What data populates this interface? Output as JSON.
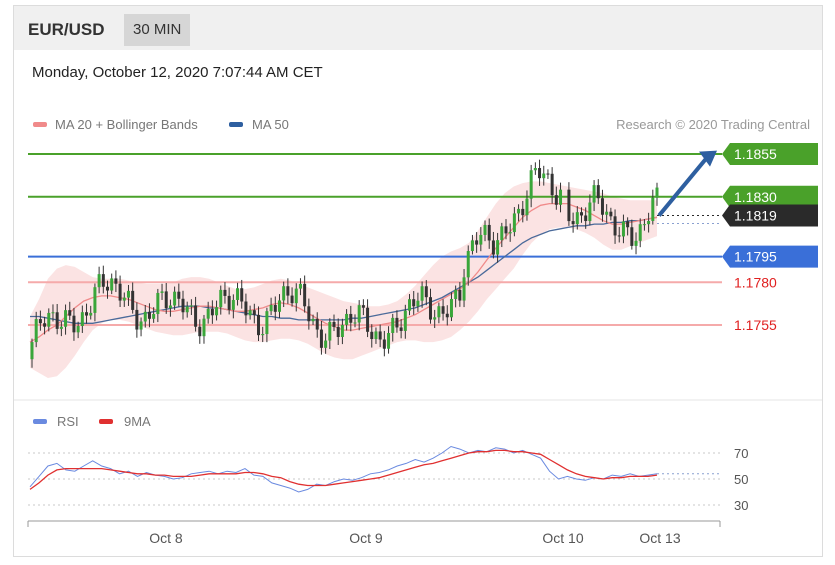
{
  "header": {
    "symbol": "EUR/USD",
    "timeframe": "30 MIN"
  },
  "datetime": "Monday, October 12, 2020 7:07:44 AM CET",
  "legend": {
    "ma20": "MA 20 + Bollinger Bands",
    "ma50": "MA 50",
    "credit": "Research © 2020 Trading Central"
  },
  "colors": {
    "resistance": "#4aa12a",
    "pivot": "#3a6fd8",
    "support": "#e02020",
    "support_line": "#f5aaaa",
    "current": "#2a2a2a",
    "candle_up": "#3aa63a",
    "candle_down": "#333333",
    "ma20": "#f08a8a",
    "ma50": "#4a6a9a",
    "band": "#fbe3e3",
    "arrow": "#2e5fa0",
    "rsi": "#6a8ae0",
    "rsi_ma": "#e03030"
  },
  "levels": [
    {
      "value": "1.1855",
      "kind": "resistance"
    },
    {
      "value": "1.1830",
      "kind": "resistance"
    },
    {
      "value": "1.1819",
      "kind": "current"
    },
    {
      "value": "1.1795",
      "kind": "pivot"
    },
    {
      "value": "1.1780",
      "kind": "support"
    },
    {
      "value": "1.1755",
      "kind": "support"
    }
  ],
  "rsi_legend": {
    "rsi": "RSI",
    "ma": "9MA"
  },
  "rsi_ticks": [
    "70",
    "50",
    "30"
  ],
  "x_labels": [
    "Oct 8",
    "Oct 9",
    "Oct 10",
    "Oct 13"
  ],
  "chart_data": {
    "type": "line",
    "title": "EUR/USD",
    "timeframe": "30 MIN",
    "y_range": [
      1.1695,
      1.1865
    ],
    "levels": [
      1.1855,
      1.183,
      1.1819,
      1.1795,
      1.178,
      1.1755
    ],
    "last_price": 1.1819,
    "ma20": [
      1.1745,
      1.1748,
      1.1752,
      1.1755,
      1.176,
      1.1765,
      1.1769,
      1.1771,
      1.1772,
      1.1772,
      1.1771,
      1.177,
      1.1768,
      1.1766,
      1.1764,
      1.1763,
      1.1763,
      1.1764,
      1.1765,
      1.1766,
      1.1766,
      1.1765,
      1.1764,
      1.1763,
      1.1763,
      1.1764,
      1.1765,
      1.1767,
      1.1768,
      1.1767,
      1.1765,
      1.1762,
      1.1759,
      1.1756,
      1.1754,
      1.1752,
      1.1752,
      1.1753,
      1.1754,
      1.1755,
      1.1756,
      1.1757,
      1.1759,
      1.1761,
      1.1764,
      1.1767,
      1.177,
      1.1773,
      1.1776,
      1.178,
      1.1786,
      1.1793,
      1.18,
      1.1806,
      1.1812,
      1.1818,
      1.1822,
      1.1825,
      1.1826,
      1.1826,
      1.1826,
      1.1824,
      1.1822,
      1.1819,
      1.1816,
      1.1814,
      1.1814,
      1.1815,
      1.1816,
      1.1817,
      1.1818
    ],
    "ma50": [
      1.176,
      1.176,
      1.1759,
      1.1758,
      1.1757,
      1.1756,
      1.1756,
      1.1756,
      1.1757,
      1.1758,
      1.1759,
      1.176,
      1.1761,
      1.1762,
      1.1763,
      1.1764,
      1.1765,
      1.1766,
      1.1766,
      1.1766,
      1.1765,
      1.1765,
      1.1764,
      1.1763,
      1.1762,
      1.1761,
      1.176,
      1.176,
      1.1759,
      1.1759,
      1.1758,
      1.1758,
      1.1758,
      1.1758,
      1.1758,
      1.1758,
      1.1759,
      1.1759,
      1.176,
      1.1761,
      1.1762,
      1.1763,
      1.1764,
      1.1765,
      1.1767,
      1.1769,
      1.1771,
      1.1774,
      1.1777,
      1.178,
      1.1783,
      1.1787,
      1.1791,
      1.1795,
      1.1799,
      1.1803,
      1.1806,
      1.1808,
      1.181,
      1.1811,
      1.1812,
      1.1813,
      1.1813,
      1.1814,
      1.1814,
      1.1815,
      1.1815,
      1.1816,
      1.1816,
      1.1817,
      1.1818
    ],
    "band_upper": [
      1.176,
      1.177,
      1.1782,
      1.1788,
      1.179,
      1.1789,
      1.1786,
      1.1783,
      1.1782,
      1.1782,
      1.1782,
      1.1781,
      1.178,
      1.1779,
      1.1779,
      1.1779,
      1.178,
      1.1782,
      1.1783,
      1.1783,
      1.1782,
      1.178,
      1.1778,
      1.1776,
      1.1776,
      1.1777,
      1.1779,
      1.1781,
      1.1782,
      1.1781,
      1.1779,
      1.1777,
      1.1775,
      1.1773,
      1.1771,
      1.1769,
      1.1768,
      1.1767,
      1.1766,
      1.1766,
      1.1767,
      1.1769,
      1.1773,
      1.1778,
      1.1784,
      1.179,
      1.1795,
      1.1798,
      1.18,
      1.1803,
      1.181,
      1.1818,
      1.1826,
      1.1832,
      1.1836,
      1.1838,
      1.1839,
      1.1839,
      1.1838,
      1.1837,
      1.1836,
      1.1835,
      1.1834,
      1.1833,
      1.1832,
      1.183,
      1.1829,
      1.1828,
      1.1828,
      1.1828,
      1.1828
    ],
    "band_lower": [
      1.173,
      1.1727,
      1.1724,
      1.1725,
      1.173,
      1.1737,
      1.1745,
      1.1752,
      1.1756,
      1.1758,
      1.1758,
      1.1757,
      1.1755,
      1.1753,
      1.1751,
      1.175,
      1.1749,
      1.1749,
      1.175,
      1.1751,
      1.1751,
      1.1751,
      1.175,
      1.1748,
      1.1746,
      1.1745,
      1.1745,
      1.1746,
      1.1747,
      1.1747,
      1.1746,
      1.1744,
      1.1741,
      1.1738,
      1.1736,
      1.1735,
      1.1735,
      1.1737,
      1.1739,
      1.1741,
      1.1743,
      1.1745,
      1.1746,
      1.1746,
      1.1745,
      1.1745,
      1.1746,
      1.1748,
      1.1752,
      1.1757,
      1.1763,
      1.177,
      1.1776,
      1.1782,
      1.1788,
      1.1796,
      1.1803,
      1.1808,
      1.1811,
      1.1812,
      1.1812,
      1.1811,
      1.1809,
      1.1806,
      1.1802,
      1.1799,
      1.1799,
      1.1801,
      1.1803,
      1.1805,
      1.1807
    ],
    "rsi_ticks": [
      70,
      50,
      30
    ],
    "rsi_levels": [
      70,
      50,
      30
    ],
    "rsi_last": 54,
    "rsi": [
      44,
      52,
      60,
      62,
      57,
      56,
      60,
      64,
      60,
      58,
      54,
      56,
      52,
      55,
      53,
      52,
      50,
      51,
      54,
      55,
      56,
      54,
      56,
      55,
      58,
      53,
      52,
      47,
      45,
      43,
      40,
      42,
      46,
      45,
      48,
      50,
      49,
      51,
      54,
      55,
      57,
      60,
      62,
      65,
      63,
      66,
      70,
      75,
      73,
      70,
      72,
      71,
      74,
      73,
      70,
      72,
      69,
      66,
      56,
      50,
      52,
      50,
      49,
      51,
      50,
      53,
      52,
      54,
      52,
      53,
      54
    ],
    "rsi_ma": [
      42,
      47,
      53,
      57,
      58,
      58,
      58,
      58,
      58,
      57,
      56,
      55,
      54,
      54,
      53,
      53,
      52,
      52,
      52,
      53,
      54,
      54,
      54,
      54,
      55,
      55,
      54,
      52,
      51,
      48,
      46,
      45,
      45,
      45,
      46,
      47,
      48,
      49,
      50,
      51,
      53,
      55,
      57,
      59,
      61,
      62,
      64,
      66,
      68,
      70,
      71,
      71,
      72,
      72,
      71,
      71,
      70,
      69,
      65,
      61,
      57,
      54,
      52,
      51,
      50,
      51,
      51,
      52,
      52,
      52,
      53
    ]
  }
}
